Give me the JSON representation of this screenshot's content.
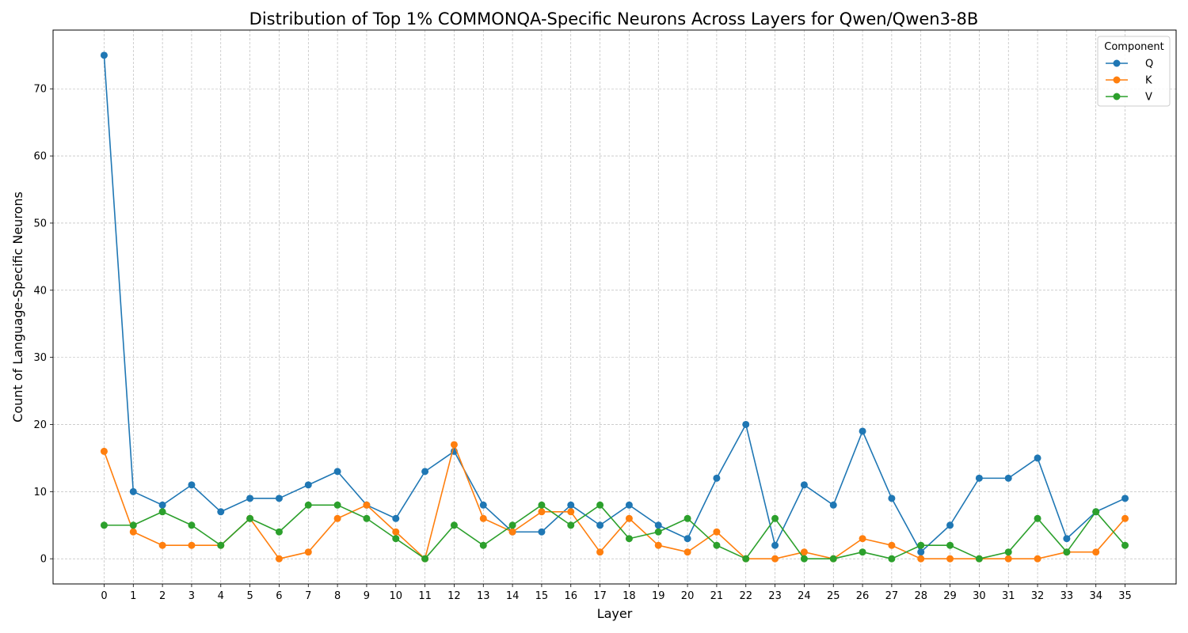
{
  "chart_data": {
    "type": "line",
    "title": "Distribution of Top 1% COMMONQA-Specific Neurons Across Layers for Qwen/Qwen3-8B",
    "xlabel": "Layer",
    "ylabel": "Count of Language-Specific Neurons",
    "x": [
      0,
      1,
      2,
      3,
      4,
      5,
      6,
      7,
      8,
      9,
      10,
      11,
      12,
      13,
      14,
      15,
      16,
      17,
      18,
      19,
      20,
      21,
      22,
      23,
      24,
      25,
      26,
      27,
      28,
      29,
      30,
      31,
      32,
      33,
      34,
      35
    ],
    "xlim": [
      -1.75,
      36.75
    ],
    "ylim": [
      -3.75,
      78.75
    ],
    "yticks": [
      0,
      10,
      20,
      30,
      40,
      50,
      60,
      70
    ],
    "grid": true,
    "legend": {
      "title": "Component",
      "placement": "top-right"
    },
    "series": [
      {
        "name": "Q",
        "color": "#1f77b4",
        "values": [
          75,
          10,
          8,
          11,
          7,
          9,
          9,
          11,
          13,
          8,
          6,
          13,
          16,
          8,
          4,
          4,
          8,
          5,
          8,
          5,
          3,
          12,
          20,
          2,
          11,
          8,
          19,
          9,
          1,
          5,
          12,
          12,
          15,
          3,
          7,
          9
        ]
      },
      {
        "name": "K",
        "color": "#ff7f0e",
        "values": [
          16,
          4,
          2,
          2,
          2,
          6,
          0,
          1,
          6,
          8,
          4,
          0,
          17,
          6,
          4,
          7,
          7,
          1,
          6,
          2,
          1,
          4,
          0,
          0,
          1,
          0,
          3,
          2,
          0,
          0,
          0,
          0,
          0,
          1,
          1,
          6
        ]
      },
      {
        "name": "V",
        "color": "#2ca02c",
        "values": [
          5,
          5,
          7,
          5,
          2,
          6,
          4,
          8,
          8,
          6,
          3,
          0,
          5,
          2,
          5,
          8,
          5,
          8,
          3,
          4,
          6,
          2,
          0,
          6,
          0,
          0,
          1,
          0,
          2,
          2,
          0,
          1,
          6,
          1,
          7,
          2
        ]
      }
    ]
  }
}
